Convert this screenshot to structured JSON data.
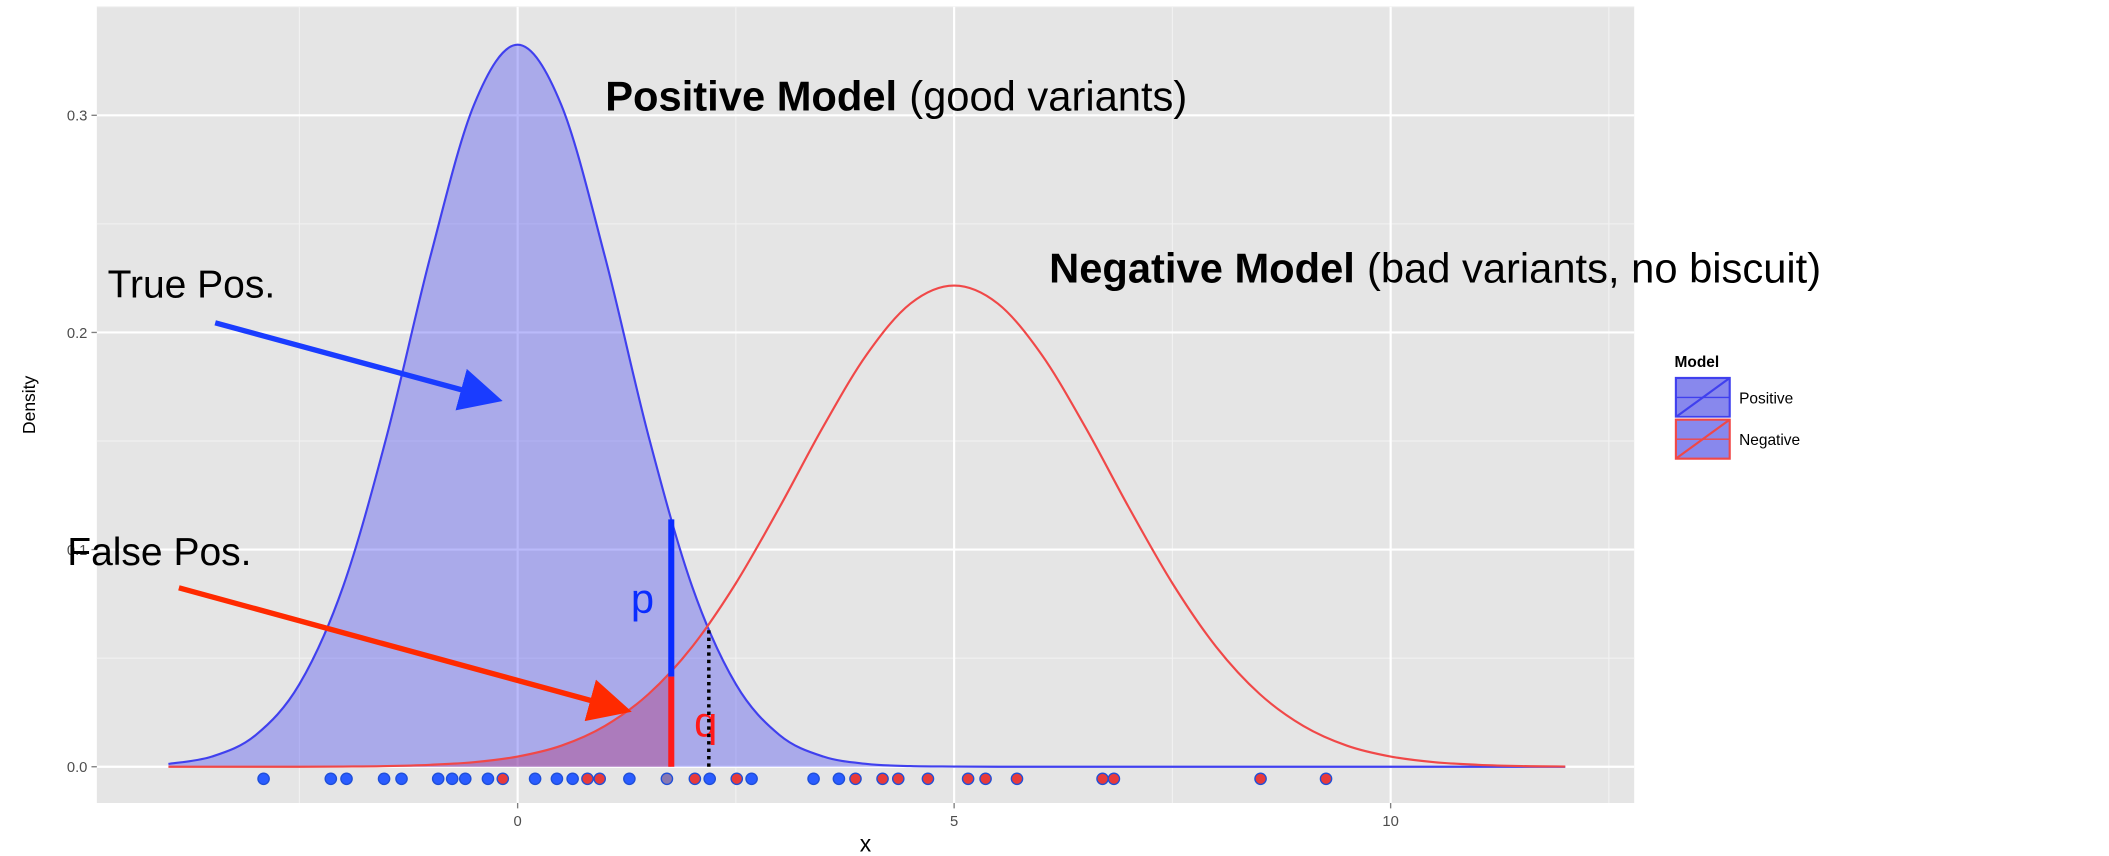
{
  "chart_data": {
    "type": "line",
    "x": [
      -4,
      -3.5,
      -3,
      -2.5,
      -2,
      -1.5,
      -1,
      -0.5,
      0,
      0.5,
      1,
      1.5,
      2,
      2.5,
      3,
      3.5,
      4,
      4.5,
      5,
      5.5,
      6,
      6.5,
      7,
      7.5,
      8,
      8.5,
      9,
      9.5,
      10,
      10.5,
      11,
      11.5,
      12
    ],
    "series": [
      {
        "name": "Positive",
        "color": "#4040ee",
        "fill": "#4a4af2",
        "fill_opacity": 0.38,
        "values": [
          0.0013,
          0.0047,
          0.0146,
          0.038,
          0.0829,
          0.1522,
          0.2349,
          0.3048,
          0.3325,
          0.3048,
          0.2349,
          0.1522,
          0.0829,
          0.038,
          0.0146,
          0.0047,
          0.0013,
          0.0003,
          0.0001,
          0,
          0,
          0,
          0,
          0,
          0,
          0,
          0,
          0,
          0,
          0,
          0,
          0,
          0
        ]
      },
      {
        "name": "Negative",
        "color": "#f04848",
        "fill": "#b03070",
        "fill_opacity": 0.38,
        "values": [
          0,
          0,
          0,
          0,
          0.0001,
          0.0003,
          0.0009,
          0.0021,
          0.0047,
          0.0097,
          0.0188,
          0.0335,
          0.0553,
          0.0845,
          0.1195,
          0.1566,
          0.1899,
          0.2133,
          0.2216,
          0.2133,
          0.1899,
          0.1566,
          0.1195,
          0.0845,
          0.0553,
          0.0335,
          0.0188,
          0.0097,
          0.0047,
          0.0021,
          0.0009,
          0.0003,
          0.0001
        ]
      }
    ],
    "xlim": [
      -4.82,
      12.79
    ],
    "ylim": [
      -0.0167,
      0.35
    ],
    "xticks": [
      0,
      5,
      10
    ],
    "yticks": [
      {
        "value": 0,
        "label": "0.0"
      },
      {
        "value": 0.1,
        "label": "0.1"
      },
      {
        "value": 0.2,
        "label": "0.2"
      },
      {
        "value": 0.3,
        "label": "0.3"
      }
    ],
    "xlabel": "x",
    "ylabel": "Density",
    "grid": true,
    "legend": {
      "title": "Model",
      "position": "right"
    },
    "vlines": [
      {
        "label": "p",
        "x": 1.76,
        "y": [
          0.0415,
          0.1139
        ],
        "color": "#0a2cff",
        "style": "solid"
      },
      {
        "label": "q",
        "x": 1.76,
        "y": [
          0,
          0.0415
        ],
        "color": "#ff1a1a",
        "style": "solid"
      },
      {
        "x": 2.19,
        "y": [
          0,
          0.064
        ],
        "color": "#000000",
        "style": "dotted"
      }
    ],
    "rug": {
      "x": [
        -2.91,
        -2.14,
        -1.96,
        -1.53,
        -1.33,
        -0.91,
        -0.75,
        -0.6,
        -0.34,
        -0.17,
        0.2,
        0.45,
        0.63,
        0.8,
        0.94,
        1.28,
        1.71,
        2.03,
        2.2,
        2.51,
        2.68,
        3.39,
        3.68,
        3.87,
        4.18,
        4.36,
        4.7,
        5.16,
        5.36,
        5.72,
        6.7,
        6.83,
        8.51,
        9.26
      ],
      "colors": [
        "#2a5cff",
        "#2a5cff",
        "#2a5cff",
        "#2a5cff",
        "#2a5cff",
        "#2a5cff",
        "#2a5cff",
        "#2a5cff",
        "#2a5cff",
        "#e83a3a",
        "#2a5cff",
        "#2a5cff",
        "#2a5cff",
        "#e83a3a",
        "#e83a3a",
        "#2a5cff",
        "#8878b0",
        "#e83a3a",
        "#2a5cff",
        "#e83a3a",
        "#2a5cff",
        "#2a5cff",
        "#2a5cff",
        "#e83a3a",
        "#e83a3a",
        "#e83a3a",
        "#e83a3a",
        "#e83a3a",
        "#e83a3a",
        "#e83a3a",
        "#e83a3a",
        "#e83a3a",
        "#e83a3a",
        "#e83a3a"
      ]
    },
    "annotations": {
      "positive": {
        "bold": "Positive Model",
        "rest": "(good variants)"
      },
      "negative": {
        "bold": "Negative Model",
        "rest": "(bad variants, no biscuit)"
      },
      "true_pos": "True Pos.",
      "false_pos": "False Pos."
    }
  }
}
